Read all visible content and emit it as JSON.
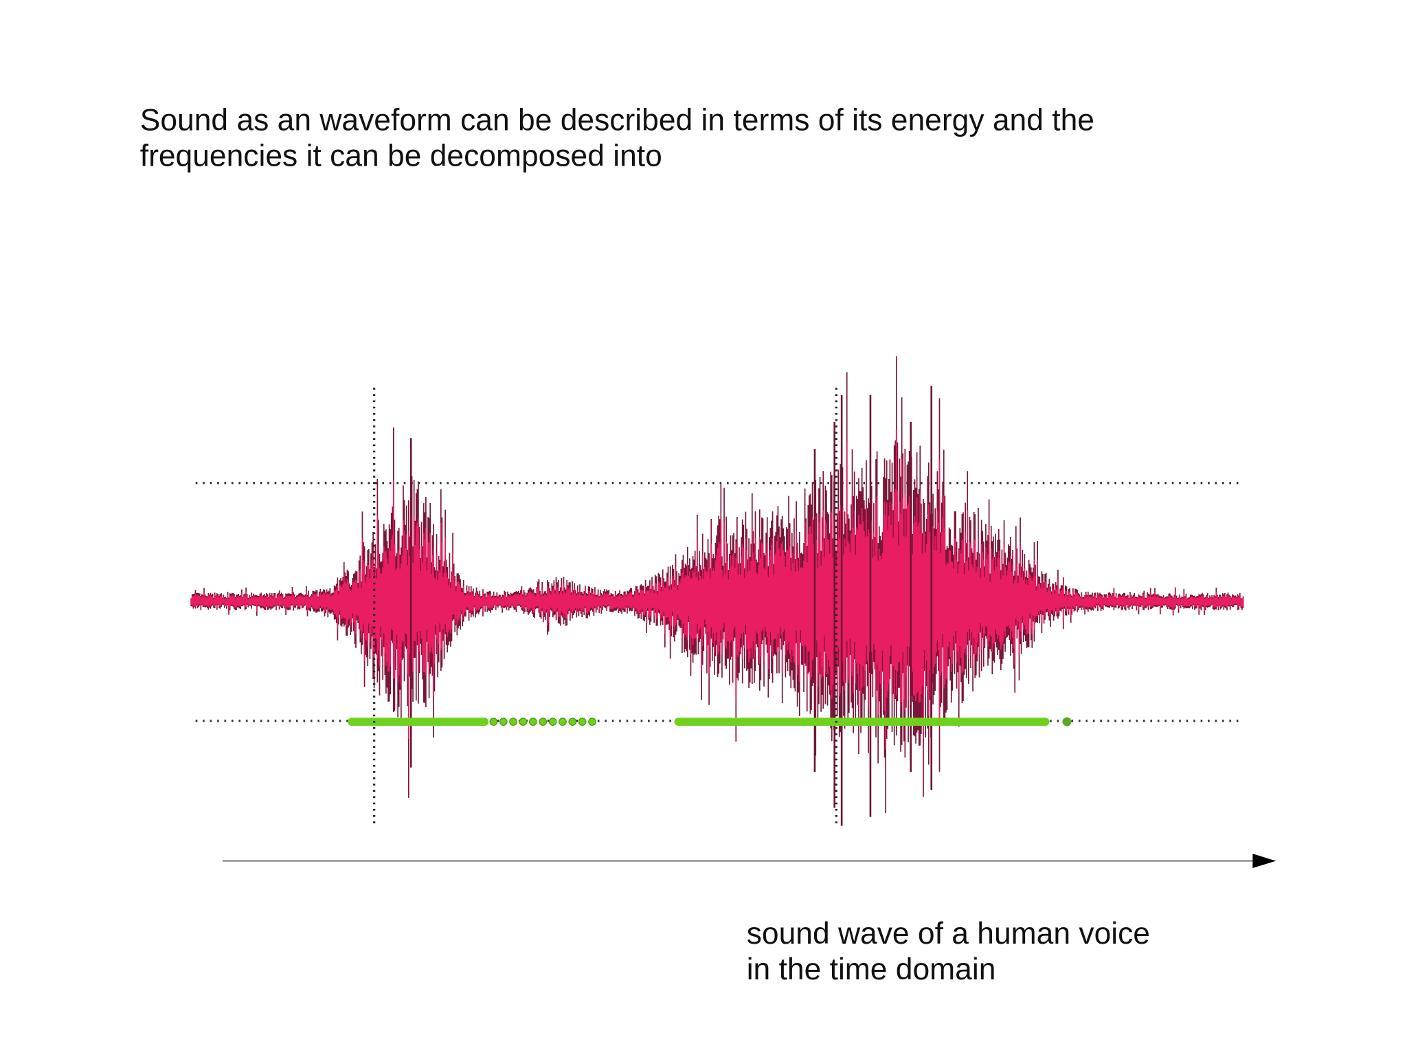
{
  "slide": {
    "title": {
      "lines": [
        "Sound as an waveform can be described in terms of its energy and the",
        "frequencies it can be decomposed into"
      ]
    },
    "caption": {
      "lines": [
        "sound wave of a human voice",
        "in the time domain"
      ]
    }
  }
}
